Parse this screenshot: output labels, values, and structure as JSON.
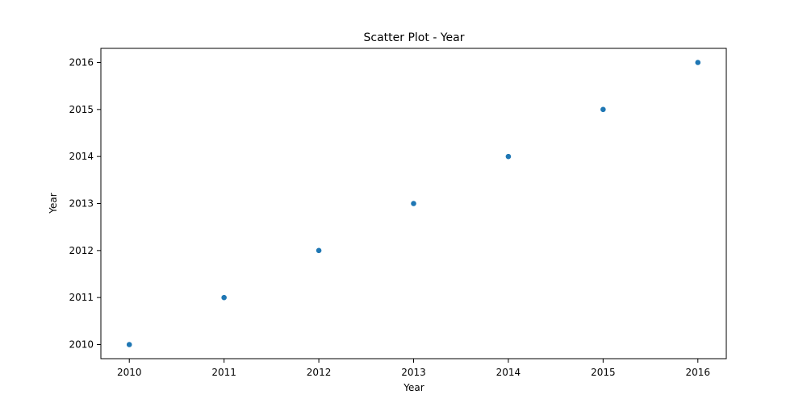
{
  "chart_data": {
    "type": "scatter",
    "title": "Scatter Plot - Year",
    "xlabel": "Year",
    "ylabel": "Year",
    "xlim": [
      2009.7,
      2016.3
    ],
    "ylim": [
      2009.7,
      2016.3
    ],
    "xticks": [
      2010,
      2011,
      2012,
      2013,
      2014,
      2015,
      2016
    ],
    "yticks": [
      2010,
      2011,
      2012,
      2013,
      2014,
      2015,
      2016
    ],
    "grid": false,
    "point_color": "#1f77b4",
    "series": [
      {
        "x": [
          2010,
          2011,
          2012,
          2013,
          2014,
          2015,
          2016
        ],
        "y": [
          2010,
          2011,
          2012,
          2013,
          2014,
          2015,
          2016
        ]
      }
    ]
  }
}
